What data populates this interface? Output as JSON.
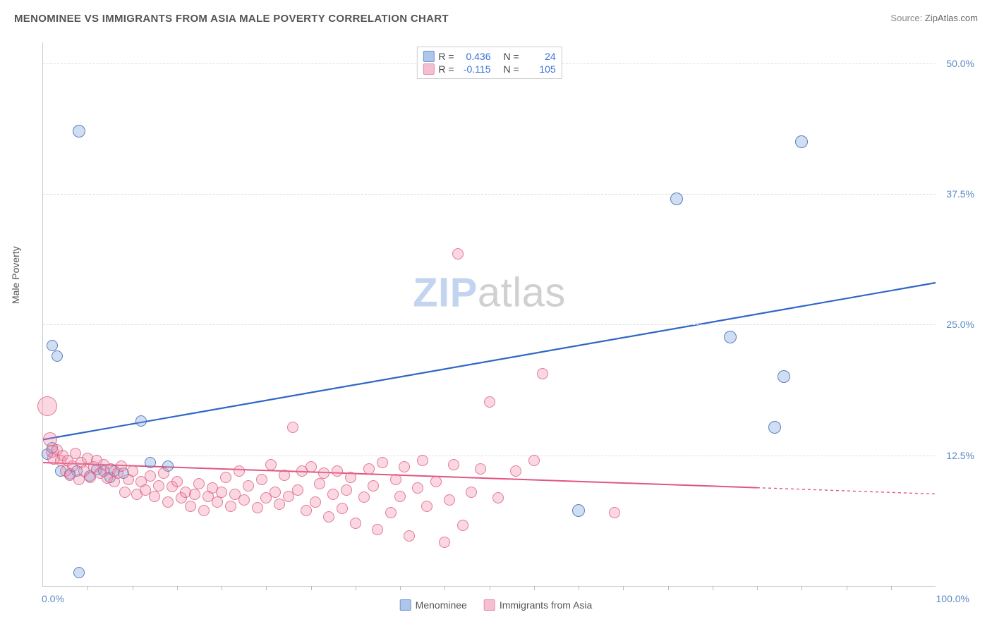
{
  "title": "MENOMINEE VS IMMIGRANTS FROM ASIA MALE POVERTY CORRELATION CHART",
  "source_label": "Source:",
  "source_value": "ZipAtlas.com",
  "ylabel": "Male Poverty",
  "watermark_a": "ZIP",
  "watermark_b": "atlas",
  "chart": {
    "type": "scatter",
    "background_color": "#ffffff",
    "grid_color": "#dddddd",
    "axis_color": "#cccccc",
    "xlim": [
      0,
      100
    ],
    "ylim": [
      0,
      52
    ],
    "x_ticks_major": [
      0,
      50,
      100
    ],
    "x_ticks_minor_step": 5,
    "x_tick_labels": {
      "left": "0.0%",
      "right": "100.0%"
    },
    "y_ticks": [
      12.5,
      25.0,
      37.5,
      50.0
    ],
    "y_tick_labels": [
      "12.5%",
      "25.0%",
      "37.5%",
      "50.0%"
    ],
    "tick_label_color": "#5b8ac6",
    "tick_fontsize": 14,
    "title_fontsize": 15,
    "title_color": "#555555",
    "marker_base_radius": 8,
    "series": [
      {
        "key": "menominee",
        "label": "Menominee",
        "fill_color": "rgba(120,160,220,0.35)",
        "stroke_color": "rgba(70,110,180,0.85)",
        "swatch_fill": "#aec6eb",
        "swatch_border": "#6a93d2",
        "R": "0.436",
        "N": "24",
        "trend": {
          "x1": 0,
          "y1": 14.0,
          "x2": 100,
          "y2": 29.0,
          "color": "#2e66c6",
          "width": 2.2,
          "dash": "none"
        },
        "points": [
          {
            "x": 1.0,
            "y": 23.0,
            "r": 8
          },
          {
            "x": 1.6,
            "y": 22.0,
            "r": 8
          },
          {
            "x": 4.0,
            "y": 43.5,
            "r": 9
          },
          {
            "x": 4.0,
            "y": 1.3,
            "r": 8
          },
          {
            "x": 0.5,
            "y": 12.6,
            "r": 8
          },
          {
            "x": 1.0,
            "y": 13.2,
            "r": 8
          },
          {
            "x": 2.0,
            "y": 11.0,
            "r": 8
          },
          {
            "x": 3.0,
            "y": 10.7,
            "r": 8
          },
          {
            "x": 3.8,
            "y": 11.0,
            "r": 8
          },
          {
            "x": 5.2,
            "y": 10.5,
            "r": 8
          },
          {
            "x": 6.0,
            "y": 11.1,
            "r": 8
          },
          {
            "x": 6.8,
            "y": 11.0,
            "r": 8
          },
          {
            "x": 7.5,
            "y": 10.4,
            "r": 8
          },
          {
            "x": 8.0,
            "y": 11.0,
            "r": 8
          },
          {
            "x": 9.0,
            "y": 10.8,
            "r": 8
          },
          {
            "x": 11.0,
            "y": 15.8,
            "r": 8
          },
          {
            "x": 12.0,
            "y": 11.8,
            "r": 8
          },
          {
            "x": 14.0,
            "y": 11.5,
            "r": 8
          },
          {
            "x": 60.0,
            "y": 7.2,
            "r": 9
          },
          {
            "x": 77.0,
            "y": 23.8,
            "r": 9
          },
          {
            "x": 82.0,
            "y": 15.2,
            "r": 9
          },
          {
            "x": 83.0,
            "y": 20.0,
            "r": 9
          },
          {
            "x": 71.0,
            "y": 37.0,
            "r": 9
          },
          {
            "x": 85.0,
            "y": 42.5,
            "r": 9
          }
        ]
      },
      {
        "key": "immigrants",
        "label": "Immigrants from Asia",
        "fill_color": "rgba(240,140,170,0.35)",
        "stroke_color": "rgba(220,90,130,0.75)",
        "swatch_fill": "#f5bfd0",
        "swatch_border": "#e48aab",
        "R": "-0.115",
        "N": "105",
        "trend": {
          "x1": 0,
          "y1": 11.8,
          "x2": 80,
          "y2": 9.4,
          "color": "#e0567f",
          "width": 2,
          "dash": "none",
          "extend_dash_to": 100,
          "extend_y": 8.8
        },
        "points": [
          {
            "x": 0.5,
            "y": 17.2,
            "r": 14
          },
          {
            "x": 0.8,
            "y": 14.0,
            "r": 10
          },
          {
            "x": 1.0,
            "y": 12.9,
            "r": 9
          },
          {
            "x": 1.2,
            "y": 12.2,
            "r": 9
          },
          {
            "x": 1.6,
            "y": 13.0,
            "r": 8
          },
          {
            "x": 2.0,
            "y": 12.0,
            "r": 8
          },
          {
            "x": 2.2,
            "y": 12.5,
            "r": 8
          },
          {
            "x": 2.5,
            "y": 11.0,
            "r": 8
          },
          {
            "x": 2.8,
            "y": 12.0,
            "r": 8
          },
          {
            "x": 3.0,
            "y": 10.6,
            "r": 8
          },
          {
            "x": 3.3,
            "y": 11.5,
            "r": 8
          },
          {
            "x": 3.6,
            "y": 12.7,
            "r": 8
          },
          {
            "x": 4.0,
            "y": 10.2,
            "r": 8
          },
          {
            "x": 4.3,
            "y": 11.8,
            "r": 8
          },
          {
            "x": 4.6,
            "y": 11.0,
            "r": 8
          },
          {
            "x": 5.0,
            "y": 12.2,
            "r": 8
          },
          {
            "x": 5.3,
            "y": 10.4,
            "r": 8
          },
          {
            "x": 5.7,
            "y": 11.4,
            "r": 8
          },
          {
            "x": 6.0,
            "y": 12.0,
            "r": 8
          },
          {
            "x": 6.4,
            "y": 10.8,
            "r": 8
          },
          {
            "x": 6.8,
            "y": 11.6,
            "r": 8
          },
          {
            "x": 7.2,
            "y": 10.3,
            "r": 8
          },
          {
            "x": 7.6,
            "y": 11.2,
            "r": 8
          },
          {
            "x": 8.0,
            "y": 10.0,
            "r": 8
          },
          {
            "x": 8.4,
            "y": 10.8,
            "r": 8
          },
          {
            "x": 8.8,
            "y": 11.5,
            "r": 8
          },
          {
            "x": 9.2,
            "y": 9.0,
            "r": 8
          },
          {
            "x": 9.6,
            "y": 10.2,
            "r": 8
          },
          {
            "x": 10.0,
            "y": 11.0,
            "r": 8
          },
          {
            "x": 10.5,
            "y": 8.8,
            "r": 8
          },
          {
            "x": 11.0,
            "y": 10.0,
            "r": 8
          },
          {
            "x": 11.5,
            "y": 9.2,
            "r": 8
          },
          {
            "x": 12.0,
            "y": 10.5,
            "r": 8
          },
          {
            "x": 12.5,
            "y": 8.6,
            "r": 8
          },
          {
            "x": 13.0,
            "y": 9.6,
            "r": 8
          },
          {
            "x": 13.5,
            "y": 10.8,
            "r": 8
          },
          {
            "x": 14.0,
            "y": 8.0,
            "r": 8
          },
          {
            "x": 14.5,
            "y": 9.5,
            "r": 8
          },
          {
            "x": 15.0,
            "y": 10.0,
            "r": 8
          },
          {
            "x": 15.5,
            "y": 8.4,
            "r": 8
          },
          {
            "x": 16.0,
            "y": 9.0,
            "r": 8
          },
          {
            "x": 16.5,
            "y": 7.6,
            "r": 8
          },
          {
            "x": 17.0,
            "y": 8.8,
            "r": 8
          },
          {
            "x": 17.5,
            "y": 9.8,
            "r": 8
          },
          {
            "x": 18.0,
            "y": 7.2,
            "r": 8
          },
          {
            "x": 18.5,
            "y": 8.6,
            "r": 8
          },
          {
            "x": 19.0,
            "y": 9.4,
            "r": 8
          },
          {
            "x": 19.5,
            "y": 8.0,
            "r": 8
          },
          {
            "x": 20.0,
            "y": 9.0,
            "r": 8
          },
          {
            "x": 20.5,
            "y": 10.4,
            "r": 8
          },
          {
            "x": 21.0,
            "y": 7.6,
            "r": 8
          },
          {
            "x": 21.5,
            "y": 8.8,
            "r": 8
          },
          {
            "x": 22.0,
            "y": 11.0,
            "r": 8
          },
          {
            "x": 22.5,
            "y": 8.2,
            "r": 8
          },
          {
            "x": 23.0,
            "y": 9.6,
            "r": 8
          },
          {
            "x": 24.0,
            "y": 7.5,
            "r": 8
          },
          {
            "x": 24.5,
            "y": 10.2,
            "r": 8
          },
          {
            "x": 25.0,
            "y": 8.4,
            "r": 8
          },
          {
            "x": 25.5,
            "y": 11.6,
            "r": 8
          },
          {
            "x": 26.0,
            "y": 9.0,
            "r": 8
          },
          {
            "x": 26.5,
            "y": 7.8,
            "r": 8
          },
          {
            "x": 27.0,
            "y": 10.6,
            "r": 8
          },
          {
            "x": 27.5,
            "y": 8.6,
            "r": 8
          },
          {
            "x": 28.0,
            "y": 15.2,
            "r": 8
          },
          {
            "x": 28.5,
            "y": 9.2,
            "r": 8
          },
          {
            "x": 29.0,
            "y": 11.0,
            "r": 8
          },
          {
            "x": 29.5,
            "y": 7.2,
            "r": 8
          },
          {
            "x": 30.0,
            "y": 11.4,
            "r": 8
          },
          {
            "x": 30.5,
            "y": 8.0,
            "r": 8
          },
          {
            "x": 31.0,
            "y": 9.8,
            "r": 8
          },
          {
            "x": 31.5,
            "y": 10.8,
            "r": 8
          },
          {
            "x": 32.0,
            "y": 6.6,
            "r": 8
          },
          {
            "x": 32.5,
            "y": 8.8,
            "r": 8
          },
          {
            "x": 33.0,
            "y": 11.0,
            "r": 8
          },
          {
            "x": 33.5,
            "y": 7.4,
            "r": 8
          },
          {
            "x": 34.0,
            "y": 9.2,
            "r": 8
          },
          {
            "x": 34.5,
            "y": 10.4,
            "r": 8
          },
          {
            "x": 35.0,
            "y": 6.0,
            "r": 8
          },
          {
            "x": 36.0,
            "y": 8.5,
            "r": 8
          },
          {
            "x": 36.5,
            "y": 11.2,
            "r": 8
          },
          {
            "x": 37.0,
            "y": 9.6,
            "r": 8
          },
          {
            "x": 37.5,
            "y": 5.4,
            "r": 8
          },
          {
            "x": 38.0,
            "y": 11.8,
            "r": 8
          },
          {
            "x": 39.0,
            "y": 7.0,
            "r": 8
          },
          {
            "x": 39.5,
            "y": 10.2,
            "r": 8
          },
          {
            "x": 40.0,
            "y": 8.6,
            "r": 8
          },
          {
            "x": 40.5,
            "y": 11.4,
            "r": 8
          },
          {
            "x": 41.0,
            "y": 4.8,
            "r": 8
          },
          {
            "x": 42.0,
            "y": 9.4,
            "r": 8
          },
          {
            "x": 42.5,
            "y": 12.0,
            "r": 8
          },
          {
            "x": 43.0,
            "y": 7.6,
            "r": 8
          },
          {
            "x": 44.0,
            "y": 10.0,
            "r": 8
          },
          {
            "x": 45.0,
            "y": 4.2,
            "r": 8
          },
          {
            "x": 45.5,
            "y": 8.2,
            "r": 8
          },
          {
            "x": 46.0,
            "y": 11.6,
            "r": 8
          },
          {
            "x": 46.5,
            "y": 31.8,
            "r": 8
          },
          {
            "x": 47.0,
            "y": 5.8,
            "r": 8
          },
          {
            "x": 48.0,
            "y": 9.0,
            "r": 8
          },
          {
            "x": 49.0,
            "y": 11.2,
            "r": 8
          },
          {
            "x": 50.0,
            "y": 17.6,
            "r": 8
          },
          {
            "x": 51.0,
            "y": 8.4,
            "r": 8
          },
          {
            "x": 53.0,
            "y": 11.0,
            "r": 8
          },
          {
            "x": 55.0,
            "y": 12.0,
            "r": 8
          },
          {
            "x": 56.0,
            "y": 20.3,
            "r": 8
          },
          {
            "x": 64.0,
            "y": 7.0,
            "r": 8
          }
        ]
      }
    ]
  },
  "legend_top": {
    "r_label": "R =",
    "n_label": "N ="
  },
  "legend_bottom": [
    {
      "series": 0
    },
    {
      "series": 1
    }
  ]
}
